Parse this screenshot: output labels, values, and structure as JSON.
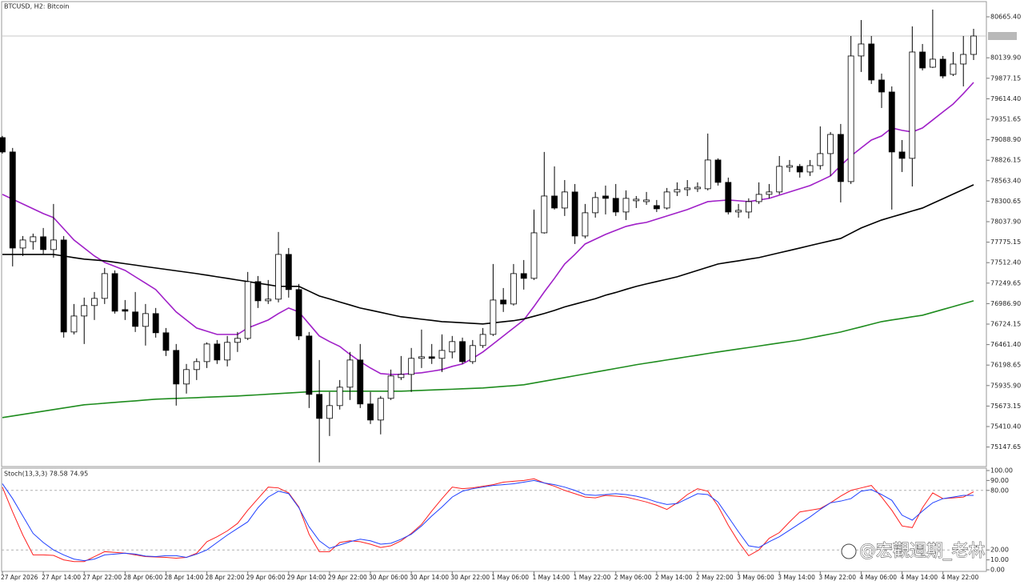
{
  "chart_data": [
    {
      "type": "candlestick",
      "title": "BTCUSD, H2: Bitcoin",
      "categories": [
        "27 Apr 2026",
        null,
        null,
        null,
        "27 Apr 14:00",
        null,
        null,
        null,
        "27 Apr 22:00",
        null,
        null,
        null,
        "28 Apr 06:00",
        null,
        null,
        null,
        "28 Apr 14:00",
        null,
        null,
        null,
        "28 Apr 22:00",
        null,
        null,
        null,
        "29 Apr 06:00",
        null,
        null,
        null,
        "29 Apr 14:00",
        null,
        null,
        null,
        "29 Apr 22:00",
        null,
        null,
        null,
        "30 Apr 06:00",
        null,
        null,
        null,
        "30 Apr 14:00",
        null,
        null,
        null,
        "30 Apr 22:00",
        null,
        null,
        null,
        "1 May 06:00",
        null,
        null,
        null,
        "1 May 14:00",
        null,
        null,
        null,
        "1 May 22:00",
        null,
        null,
        null,
        "2 May 06:00",
        null,
        null,
        null,
        "2 May 14:00",
        null,
        null,
        null,
        "2 May 22:00",
        null,
        null,
        null,
        "3 May 06:00",
        null,
        null,
        null,
        "3 May 14:00",
        null,
        null,
        null,
        "3 May 22:00",
        null,
        null,
        null,
        "4 May 06:00",
        null,
        null,
        null,
        "4 May 14:00",
        null,
        null,
        null,
        "4 May 22:00",
        null,
        null,
        null
      ],
      "open": [
        79116,
        78932,
        77700,
        77782,
        77844,
        77680,
        77803,
        76623,
        76828,
        76962,
        77054,
        77372,
        76910,
        76880,
        76695,
        76859,
        76613,
        76387,
        75956,
        76141,
        76243,
        76469,
        76264,
        76490,
        76541,
        77269,
        77023,
        77044,
        77618,
        77167,
        76572,
        75823,
        75515,
        75679,
        75915,
        76264,
        75700,
        75494,
        75772,
        76038,
        76079,
        76285,
        76305,
        76285,
        76367,
        76500,
        76243,
        76449,
        76592,
        77033,
        76982,
        77372,
        77311,
        77895,
        78367,
        78213,
        78419,
        77854,
        78152,
        78367,
        78337,
        78162,
        78306,
        78295,
        78244,
        78213,
        78419,
        78449,
        78460,
        78460,
        78829,
        78542,
        78162,
        78162,
        78295,
        78388,
        78419,
        78737,
        78747,
        78675,
        78757,
        78911,
        79157,
        78552,
        80163,
        80317,
        79855,
        79701,
        78932,
        78850,
        80214,
        80019,
        80122,
        79927,
        80060,
        80183
      ],
      "high": [
        79137,
        78983,
        77854,
        77885,
        77957,
        78265,
        77854,
        76982,
        77064,
        77136,
        77444,
        77413,
        77033,
        77136,
        76982,
        76931,
        76674,
        76469,
        76213,
        76285,
        76490,
        76520,
        76572,
        76623,
        77393,
        77341,
        77290,
        77906,
        77700,
        77239,
        76623,
        76264,
        75854,
        76007,
        76367,
        76469,
        75854,
        75802,
        76141,
        76315,
        76418,
        76654,
        76469,
        76592,
        76572,
        76551,
        76520,
        76674,
        77495,
        77187,
        77495,
        77546,
        78193,
        78932,
        78747,
        78572,
        78521,
        78265,
        78419,
        78501,
        78521,
        78439,
        78367,
        78419,
        78316,
        78470,
        78542,
        78572,
        78542,
        79168,
        78850,
        78603,
        78265,
        78337,
        78542,
        78521,
        78880,
        78829,
        78778,
        78829,
        79260,
        79188,
        79291,
        80419,
        80624,
        80419,
        79937,
        79773,
        79085,
        80542,
        80317,
        80758,
        80163,
        80214,
        80419,
        80512
      ],
      "low": [
        78911,
        77464,
        77598,
        77680,
        77618,
        77577,
        76551,
        76592,
        76469,
        76777,
        76982,
        76859,
        76777,
        76623,
        76449,
        76551,
        76315,
        75679,
        75833,
        76007,
        76161,
        76213,
        76182,
        76367,
        76520,
        76931,
        76982,
        77003,
        77064,
        76520,
        75648,
        74951,
        75289,
        75628,
        75751,
        75648,
        75443,
        75310,
        75751,
        76007,
        75854,
        76161,
        76213,
        76110,
        76285,
        76213,
        76213,
        76418,
        76572,
        76880,
        76962,
        77167,
        77290,
        77885,
        78193,
        78111,
        77752,
        77824,
        78090,
        78131,
        78111,
        78059,
        78213,
        78254,
        78162,
        78193,
        78367,
        78367,
        78419,
        78439,
        78501,
        78131,
        78090,
        78080,
        78265,
        78337,
        78388,
        78675,
        78603,
        78624,
        78706,
        78624,
        78285,
        78521,
        79958,
        79804,
        79496,
        78193,
        78675,
        78490,
        79978,
        80009,
        79876,
        79906,
        79773,
        80111
      ],
      "close": [
        78932,
        77700,
        77803,
        77844,
        77680,
        77803,
        76623,
        76828,
        76962,
        77054,
        77372,
        76890,
        76890,
        76695,
        76859,
        76613,
        76387,
        75956,
        76141,
        76243,
        76469,
        76264,
        76490,
        76541,
        77269,
        77023,
        77044,
        77618,
        77167,
        76572,
        75823,
        75515,
        75679,
        75915,
        76264,
        75700,
        75494,
        75772,
        76059,
        76079,
        76285,
        76305,
        76285,
        76387,
        76500,
        76243,
        76449,
        76592,
        77033,
        76982,
        77372,
        77311,
        77895,
        78367,
        78213,
        78419,
        77854,
        78152,
        78347,
        78337,
        78162,
        78337,
        78326,
        78316,
        78203,
        78419,
        78449,
        78470,
        78480,
        78829,
        78542,
        78162,
        78183,
        78295,
        78388,
        78419,
        78747,
        78757,
        78675,
        78757,
        78911,
        79157,
        78552,
        80163,
        80317,
        79855,
        79701,
        78932,
        78850,
        80214,
        80009,
        80122,
        79906,
        80060,
        80183,
        80419
      ],
      "up_color": "#ffffff",
      "down_color": "#000000",
      "overlays": [
        {
          "color": "#a020c8",
          "values": [
            78388,
            78326,
            78265,
            78203,
            78142,
            78090,
            77947,
            77803,
            77700,
            77598,
            77516,
            77464,
            77413,
            77331,
            77249,
            77167,
            77023,
            76880,
            76777,
            76674,
            76633,
            76592,
            76592,
            76592,
            76674,
            76726,
            76777,
            76859,
            76931,
            76880,
            76726,
            76572,
            76500,
            76438,
            76336,
            76243,
            76161,
            76090,
            76079,
            76079,
            76090,
            76100,
            76120,
            76141,
            76182,
            76213,
            76285,
            76367,
            76469,
            76572,
            76674,
            76777,
            76951,
            77136,
            77311,
            77495,
            77618,
            77752,
            77813,
            77875,
            77926,
            77977,
            78008,
            78029,
            78070,
            78111,
            78152,
            78193,
            78244,
            78295,
            78306,
            78316,
            78306,
            78295,
            78316,
            78337,
            78378,
            78419,
            78460,
            78501,
            78562,
            78624,
            78757,
            78880,
            78983,
            79085,
            79137,
            79240,
            79209,
            79188,
            79240,
            79342,
            79445,
            79547,
            79681,
            79824
          ]
        },
        {
          "color": "#000000",
          "values": [
            77618,
            77618,
            77618,
            77618,
            77618,
            77618,
            77598,
            77577,
            77557,
            77547,
            77536,
            77518,
            77499,
            77481,
            77462,
            77444,
            77426,
            77408,
            77390,
            77372,
            77352,
            77331,
            77311,
            77290,
            77270,
            77249,
            77229,
            77208,
            77208,
            77208,
            77147,
            77085,
            77047,
            77008,
            76970,
            76931,
            76903,
            76875,
            76846,
            76818,
            76803,
            76787,
            76772,
            76756,
            76749,
            76741,
            76734,
            76726,
            76740,
            76754,
            76768,
            76790,
            76825,
            76860,
            76900,
            76945,
            76980,
            77015,
            77050,
            77095,
            77130,
            77170,
            77208,
            77240,
            77270,
            77300,
            77331,
            77372,
            77413,
            77454,
            77495,
            77516,
            77536,
            77557,
            77577,
            77608,
            77639,
            77669,
            77700,
            77731,
            77762,
            77792,
            77823,
            77890,
            77957,
            78008,
            78059,
            78098,
            78136,
            78175,
            78213,
            78273,
            78332,
            78392,
            78451,
            78511
          ]
        },
        {
          "color": "#1e8c1e",
          "values": [
            75525,
            75546,
            75566,
            75587,
            75607,
            75628,
            75648,
            75669,
            75689,
            75699,
            75710,
            75720,
            75730,
            75740,
            75751,
            75761,
            75766,
            75771,
            75776,
            75781,
            75787,
            75792,
            75797,
            75802,
            75810,
            75817,
            75825,
            75833,
            75841,
            75848,
            75856,
            75864,
            75864,
            75864,
            75864,
            75864,
            75864,
            75864,
            75864,
            75864,
            75869,
            75874,
            75879,
            75884,
            75889,
            75895,
            75900,
            75905,
            75915,
            75925,
            75935,
            75946,
            75969,
            75992,
            76015,
            76038,
            76062,
            76085,
            76109,
            76132,
            76156,
            76179,
            76203,
            76224,
            76244,
            76265,
            76285,
            76306,
            76326,
            76347,
            76367,
            76386,
            76405,
            76424,
            76443,
            76463,
            76482,
            76501,
            76520,
            76546,
            76572,
            76597,
            76623,
            76656,
            76689,
            76723,
            76756,
            76777,
            76797,
            76818,
            76838,
            76875,
            76912,
            76949,
            76986,
            77023
          ]
        }
      ],
      "price_line": 80419,
      "ylim": [
        74897.2,
        80860.4
      ],
      "yticks": [
        {
          "value": 80665.4,
          "label": "80665.40"
        },
        {
          "value": 80139.9,
          "label": "80139.90"
        },
        79877.15,
        {
          "value": 79614.4,
          "label": "79614.40"
        },
        79351.65,
        {
          "value": 79088.9,
          "label": "79088.90"
        },
        78826.15,
        {
          "value": 78563.4,
          "label": "78563.40"
        },
        78300.65,
        {
          "value": 78037.9,
          "label": "78037.90"
        },
        77775.15,
        {
          "value": 77512.4,
          "label": "77512.40"
        },
        77249.65,
        {
          "value": 76986.9,
          "label": "76986.90"
        },
        76724.15,
        {
          "value": 76461.4,
          "label": "76461.40"
        },
        76198.65,
        {
          "value": 75935.9,
          "label": "75935.90"
        },
        75673.15,
        {
          "value": 75410.4,
          "label": "75410.40"
        },
        75147.65
      ]
    },
    {
      "type": "line",
      "title": "Stoch(13,3,3) 78.58 74.95",
      "series": [
        {
          "color": "#ff2020",
          "values": [
            83.3,
            58.3,
            35.0,
            15.0,
            15.0,
            14.5,
            10.0,
            8.3,
            8.3,
            13.3,
            18.3,
            17.5,
            16.7,
            15.0,
            13.3,
            12.9,
            12.5,
            11.7,
            12.5,
            16.7,
            28.3,
            33.3,
            39.2,
            46.7,
            60.0,
            71.7,
            83.3,
            82.5,
            77.5,
            63.3,
            35.8,
            18.3,
            18.3,
            27.5,
            29.2,
            28.3,
            25.8,
            22.5,
            24.2,
            29.2,
            36.7,
            45.8,
            59.2,
            71.7,
            83.3,
            81.7,
            82.5,
            84.2,
            85.8,
            88.3,
            89.2,
            90.0,
            91.7,
            87.5,
            84.2,
            80.0,
            76.7,
            73.3,
            72.5,
            75.0,
            74.2,
            73.3,
            70.8,
            68.3,
            65.0,
            60.8,
            67.5,
            75.8,
            81.7,
            79.2,
            64.2,
            45.0,
            28.3,
            14.2,
            20.0,
            31.7,
            37.5,
            48.3,
            58.3,
            60.0,
            61.7,
            67.5,
            74.2,
            80.0,
            82.5,
            85.0,
            73.3,
            60.0,
            44.2,
            42.5,
            62.5,
            77.5,
            71.7,
            72.5,
            73.3,
            78.58
          ]
        },
        {
          "color": "#2040ff",
          "values": [
            86.7,
            71.7,
            54.2,
            36.7,
            27.5,
            20.0,
            15.0,
            10.8,
            9.2,
            10.8,
            15.0,
            15.8,
            16.7,
            15.8,
            13.8,
            13.3,
            14.2,
            14.2,
            12.5,
            15.8,
            20.0,
            27.5,
            35.0,
            41.7,
            48.3,
            62.5,
            73.3,
            79.2,
            76.7,
            62.5,
            43.3,
            29.2,
            21.7,
            25.0,
            28.3,
            30.8,
            29.2,
            25.8,
            26.7,
            30.8,
            35.8,
            44.2,
            54.2,
            63.3,
            73.3,
            79.2,
            81.7,
            83.3,
            85.0,
            85.8,
            86.7,
            88.3,
            90.0,
            87.5,
            85.8,
            83.3,
            80.0,
            75.8,
            75.0,
            75.8,
            76.7,
            75.8,
            74.2,
            71.7,
            68.3,
            65.8,
            66.7,
            71.7,
            76.7,
            75.8,
            68.3,
            53.3,
            38.3,
            24.2,
            22.5,
            28.3,
            33.3,
            40.0,
            46.7,
            53.3,
            60.8,
            67.5,
            69.2,
            71.7,
            79.2,
            80.8,
            75.8,
            70.0,
            55.0,
            50.0,
            59.2,
            67.5,
            71.7,
            73.3,
            75.0,
            74.95
          ]
        }
      ],
      "levels": [
        20,
        80
      ],
      "ylim": [
        -1.6,
        102.4
      ],
      "yticks": [
        {
          "value": 100,
          "label": "100.00"
        },
        {
          "value": 90,
          "label": "90.00"
        },
        {
          "value": 80,
          "label": "80.00"
        },
        {
          "value": 20,
          "label": "20.00"
        },
        {
          "value": 10,
          "label": "10.00"
        },
        {
          "value": 0,
          "label": "0.00"
        }
      ]
    }
  ],
  "watermark": "@宏觀週期_老林"
}
